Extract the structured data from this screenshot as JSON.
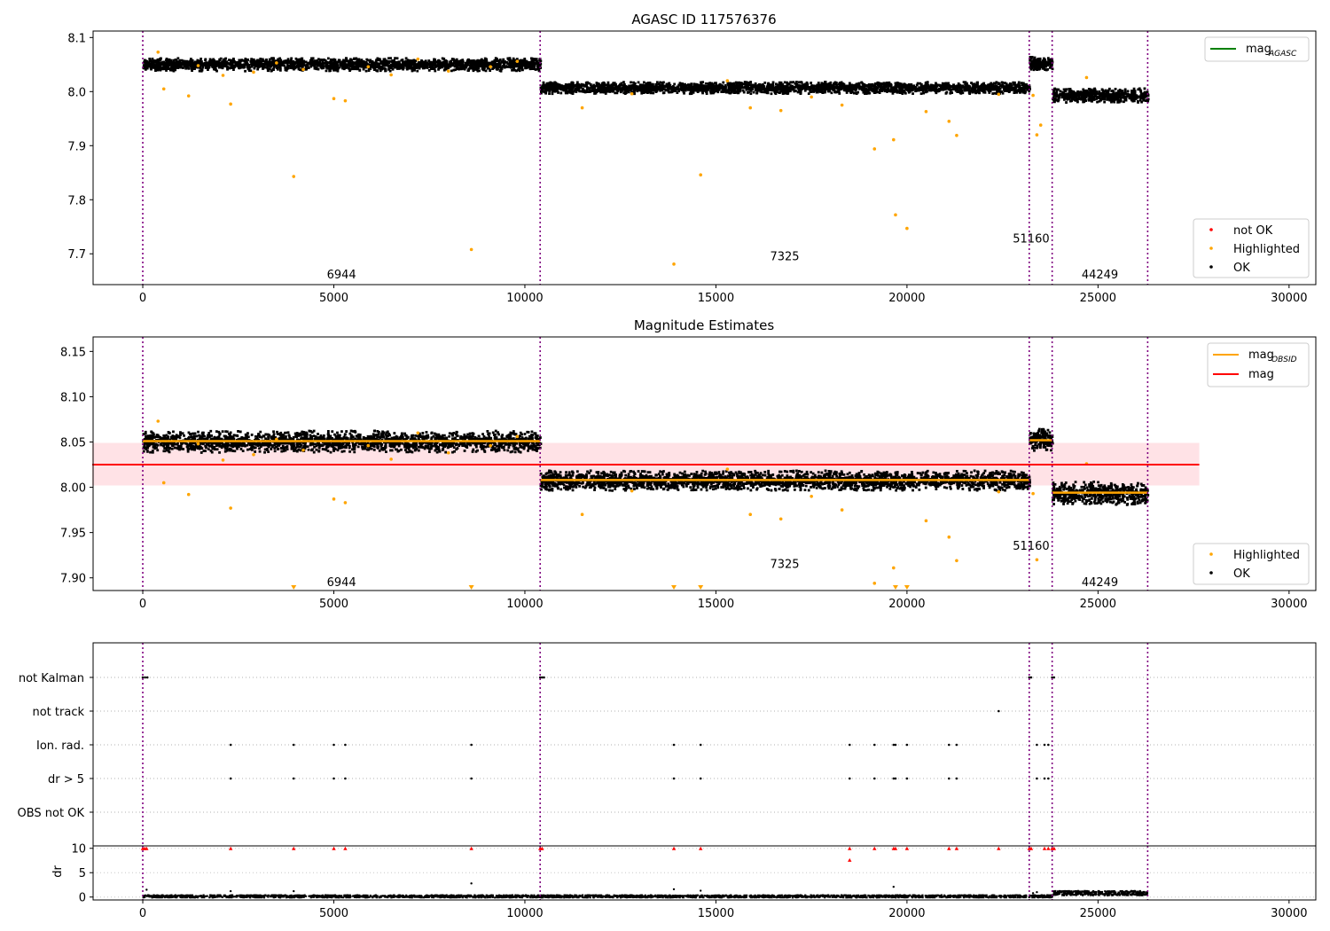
{
  "chart_data": [
    {
      "type": "scatter",
      "title": "AGASC ID 117576376",
      "xlim": [
        -1300,
        30700
      ],
      "ylim": [
        7.643,
        8.112
      ],
      "xticks": [
        0,
        5000,
        10000,
        15000,
        20000,
        25000,
        30000
      ],
      "yticks": [
        7.7,
        7.8,
        7.9,
        8.0,
        8.1
      ],
      "ytick_labels": [
        "7.7",
        "7.8",
        "7.9",
        "8.0",
        "8.1"
      ],
      "vlines": [
        0,
        10400,
        23200,
        23800,
        26300
      ],
      "obsid_labels": [
        {
          "text": "6944",
          "x": 5200,
          "y": 7.663
        },
        {
          "text": "7325",
          "x": 16800,
          "y": 7.696
        },
        {
          "text": "51160",
          "x": 23250,
          "y": 7.729
        },
        {
          "text": "44249",
          "x": 25050,
          "y": 7.663
        }
      ],
      "segments": [
        {
          "x0": 0,
          "x1": 10400,
          "center": 8.051,
          "spread": 0.012
        },
        {
          "x0": 10400,
          "x1": 23200,
          "center": 8.008,
          "spread": 0.011
        },
        {
          "x0": 23200,
          "x1": 23800,
          "center": 8.053,
          "spread": 0.012
        },
        {
          "x0": 23800,
          "x1": 26300,
          "center": 7.994,
          "spread": 0.013
        }
      ],
      "highlighted_points": [
        [
          400,
          8.073
        ],
        [
          550,
          8.005
        ],
        [
          1200,
          7.992
        ],
        [
          1450,
          8.048
        ],
        [
          2100,
          8.03
        ],
        [
          2300,
          7.977
        ],
        [
          2900,
          8.036
        ],
        [
          3500,
          8.053
        ],
        [
          3950,
          7.843
        ],
        [
          4200,
          8.041
        ],
        [
          5000,
          7.987
        ],
        [
          5300,
          7.983
        ],
        [
          5900,
          8.046
        ],
        [
          6500,
          8.031
        ],
        [
          7200,
          8.06
        ],
        [
          8000,
          8.038
        ],
        [
          8600,
          7.708
        ],
        [
          9100,
          8.046
        ],
        [
          9800,
          8.056
        ],
        [
          11500,
          7.97
        ],
        [
          12800,
          7.996
        ],
        [
          13900,
          7.681
        ],
        [
          14600,
          7.846
        ],
        [
          15300,
          8.02
        ],
        [
          15900,
          7.97
        ],
        [
          16700,
          7.965
        ],
        [
          17500,
          7.99
        ],
        [
          18300,
          7.975
        ],
        [
          19150,
          7.894
        ],
        [
          19650,
          7.911
        ],
        [
          19700,
          7.772
        ],
        [
          20000,
          7.747
        ],
        [
          20500,
          7.963
        ],
        [
          21100,
          7.945
        ],
        [
          21300,
          7.919
        ],
        [
          22400,
          7.995
        ],
        [
          23400,
          7.92
        ],
        [
          23500,
          7.938
        ],
        [
          23300,
          7.993
        ],
        [
          24700,
          8.026
        ]
      ],
      "legend_lines": [
        {
          "label": "mag",
          "sub": "AGASC",
          "color": "#008000"
        }
      ],
      "legend_points": [
        {
          "label": "not OK",
          "color": "#ff0000"
        },
        {
          "label": "Highlighted",
          "color": "#ffa500"
        },
        {
          "label": "OK",
          "color": "#000000"
        }
      ]
    },
    {
      "type": "scatter",
      "title": "Magnitude Estimates",
      "xlim": [
        -1300,
        30700
      ],
      "ylim": [
        7.886,
        8.166
      ],
      "xticks": [
        0,
        5000,
        10000,
        15000,
        20000,
        25000,
        30000
      ],
      "yticks": [
        7.9,
        7.95,
        8.0,
        8.05,
        8.1,
        8.15
      ],
      "ytick_labels": [
        "7.90",
        "7.95",
        "8.00",
        "8.05",
        "8.10",
        "8.15"
      ],
      "vlines": [
        0,
        10400,
        23200,
        23800,
        26300
      ],
      "mag": 8.025,
      "mag_band": [
        8.002,
        8.049
      ],
      "mag_x": [
        0,
        27650
      ],
      "obsid_mags": [
        {
          "x0": 0,
          "x1": 10400,
          "y": 8.051
        },
        {
          "x0": 10400,
          "x1": 23200,
          "y": 8.008
        },
        {
          "x0": 23200,
          "x1": 23800,
          "y": 8.052
        },
        {
          "x0": 23800,
          "x1": 26300,
          "y": 7.994
        }
      ],
      "obsid_labels": [
        {
          "text": "6944",
          "x": 5200,
          "y": 7.896
        },
        {
          "text": "7325",
          "x": 16800,
          "y": 7.916
        },
        {
          "text": "51160",
          "x": 23250,
          "y": 7.936
        },
        {
          "text": "44249",
          "x": 25050,
          "y": 7.896
        }
      ],
      "segments": [
        {
          "x0": 0,
          "x1": 10400,
          "center": 8.051,
          "spread": 0.012
        },
        {
          "x0": 10400,
          "x1": 23200,
          "center": 8.008,
          "spread": 0.011
        },
        {
          "x0": 23200,
          "x1": 23800,
          "center": 8.053,
          "spread": 0.012
        },
        {
          "x0": 23800,
          "x1": 26300,
          "center": 7.994,
          "spread": 0.013
        }
      ],
      "highlighted_points": [
        [
          400,
          8.073
        ],
        [
          550,
          8.005
        ],
        [
          1200,
          7.992
        ],
        [
          1450,
          8.048
        ],
        [
          2100,
          8.03
        ],
        [
          2300,
          7.977
        ],
        [
          2900,
          8.036
        ],
        [
          3500,
          8.053
        ],
        [
          4200,
          8.041
        ],
        [
          5000,
          7.987
        ],
        [
          5300,
          7.983
        ],
        [
          5900,
          8.046
        ],
        [
          6500,
          8.031
        ],
        [
          7200,
          8.06
        ],
        [
          8000,
          8.038
        ],
        [
          9100,
          8.046
        ],
        [
          9800,
          8.056
        ],
        [
          11500,
          7.97
        ],
        [
          12800,
          7.996
        ],
        [
          15300,
          8.02
        ],
        [
          15900,
          7.97
        ],
        [
          16700,
          7.965
        ],
        [
          17500,
          7.99
        ],
        [
          18300,
          7.975
        ],
        [
          19150,
          7.894
        ],
        [
          19650,
          7.911
        ],
        [
          20500,
          7.963
        ],
        [
          21100,
          7.945
        ],
        [
          21300,
          7.919
        ],
        [
          22400,
          7.995
        ],
        [
          23400,
          7.92
        ],
        [
          23300,
          7.993
        ],
        [
          24700,
          8.026
        ]
      ],
      "clipped_points": [
        3950,
        8600,
        13900,
        14600,
        19700,
        20000
      ],
      "legend_lines": [
        {
          "label": "mag",
          "sub": "OBSID",
          "color": "#ffa500"
        },
        {
          "label": "mag",
          "sub": "",
          "color": "#ff0000"
        }
      ],
      "legend_points": [
        {
          "label": "Highlighted",
          "color": "#ffa500"
        },
        {
          "label": "OK",
          "color": "#000000"
        }
      ]
    },
    {
      "type": "scatter",
      "title": "",
      "xlim": [
        -1300,
        30700
      ],
      "xticks": [
        0,
        5000,
        10000,
        15000,
        20000,
        25000,
        30000
      ],
      "vlines": [
        0,
        10400,
        23200,
        23800,
        26300
      ],
      "flag_rows": [
        "not Kalman",
        "not track",
        "Ion. rad.",
        "dr > 5",
        "OBS not OK"
      ],
      "flag_points": {
        "not Kalman": [
          0,
          60,
          120,
          10400,
          10450,
          10500,
          23200,
          23250,
          23800,
          23850
        ],
        "not track": [
          22400
        ],
        "Ion. rad.": [
          2300,
          3950,
          5000,
          5300,
          8600,
          13900,
          14600,
          18500,
          19150,
          19650,
          19700,
          20000,
          21100,
          21300,
          23400,
          23600,
          23700
        ],
        "dr > 5": [
          2300,
          3950,
          5000,
          5300,
          8600,
          13900,
          14600,
          18500,
          19150,
          19650,
          19700,
          20000,
          21100,
          21300,
          23400,
          23600,
          23700
        ],
        "OBS not OK": []
      },
      "dr_ylabel": "dr",
      "dr_ylim": [
        -0.6,
        10.5
      ],
      "dr_yticks": [
        0,
        5,
        10
      ],
      "dr_ytick_labels": [
        "0",
        "5",
        "10"
      ],
      "dr_red_points": [
        [
          0,
          10
        ],
        [
          50,
          10
        ],
        [
          100,
          10
        ],
        [
          2300,
          10
        ],
        [
          3950,
          10
        ],
        [
          5000,
          10
        ],
        [
          5300,
          10
        ],
        [
          8600,
          10
        ],
        [
          10400,
          10
        ],
        [
          10450,
          10
        ],
        [
          13900,
          10
        ],
        [
          14600,
          10
        ],
        [
          18500,
          10
        ],
        [
          18500,
          7.6
        ],
        [
          19150,
          10
        ],
        [
          19650,
          10
        ],
        [
          19700,
          10
        ],
        [
          20000,
          10
        ],
        [
          21100,
          10
        ],
        [
          21300,
          10
        ],
        [
          22400,
          10
        ],
        [
          23200,
          10
        ],
        [
          23250,
          10
        ],
        [
          23600,
          10
        ],
        [
          23700,
          10
        ],
        [
          23800,
          10
        ],
        [
          23850,
          10
        ]
      ],
      "dr_black_points": [
        [
          100,
          1.5
        ],
        [
          2300,
          1.2
        ],
        [
          3950,
          1.2
        ],
        [
          8600,
          2.8
        ],
        [
          13900,
          1.6
        ],
        [
          14600,
          1.3
        ],
        [
          19650,
          2.1
        ],
        [
          23300,
          0.8
        ],
        [
          23400,
          1.0
        ]
      ],
      "dr_segments": [
        {
          "x0": 0,
          "x1": 23800,
          "center": 0.25,
          "spread": 0.25
        },
        {
          "x0": 23800,
          "x1": 26300,
          "center": 0.9,
          "spread": 0.45
        }
      ]
    }
  ]
}
